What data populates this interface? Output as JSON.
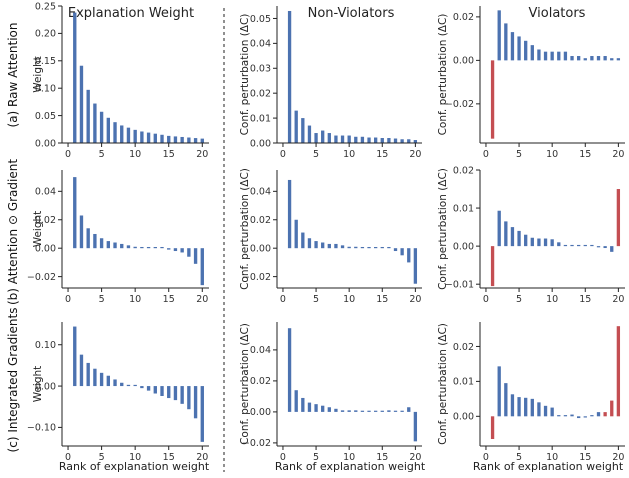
{
  "figure": {
    "column_titles": [
      "Explanation Weight",
      "Non-Violators",
      "Violators"
    ],
    "row_labels": [
      "(a) Raw Attention",
      "(b) Attention ⊙ Gradient",
      "(c) Integrated Gradients"
    ],
    "xlabel": "Rank of explanation weight",
    "colors": {
      "bar": "#4c72b0",
      "highlight": "#c44e52",
      "axis": "#222222"
    }
  },
  "chart_data": [
    {
      "type": "bar",
      "row": 0,
      "col": 0,
      "ylabel": "Weight",
      "x": [
        1,
        2,
        3,
        4,
        5,
        6,
        7,
        8,
        9,
        10,
        11,
        12,
        13,
        14,
        15,
        16,
        17,
        18,
        19,
        20
      ],
      "values": [
        0.238,
        0.141,
        0.097,
        0.072,
        0.057,
        0.046,
        0.038,
        0.032,
        0.028,
        0.024,
        0.021,
        0.019,
        0.017,
        0.015,
        0.013,
        0.012,
        0.011,
        0.01,
        0.009,
        0.008
      ],
      "ylim": [
        0,
        0.25
      ],
      "yticks": [
        "0.00",
        "0.05",
        "0.10",
        "0.15",
        "0.20",
        "0.25"
      ],
      "ytick_values": [
        0,
        0.05,
        0.1,
        0.15,
        0.2,
        0.25
      ],
      "xticks": [
        "0",
        "5",
        "10",
        "15",
        "20"
      ],
      "highlight": []
    },
    {
      "type": "bar",
      "row": 0,
      "col": 1,
      "ylabel": "Conf. perturbation (ΔC)",
      "x": [
        1,
        2,
        3,
        4,
        5,
        6,
        7,
        8,
        9,
        10,
        11,
        12,
        13,
        14,
        15,
        16,
        17,
        18,
        19,
        20
      ],
      "values": [
        0.053,
        0.013,
        0.01,
        0.007,
        0.004,
        0.005,
        0.004,
        0.003,
        0.003,
        0.003,
        0.0025,
        0.0025,
        0.0022,
        0.0022,
        0.002,
        0.002,
        0.0018,
        0.0015,
        0.0015,
        0.0012
      ],
      "ylim": [
        0,
        0.055
      ],
      "yticks": [
        "0.00",
        "0.01",
        "0.02",
        "0.03",
        "0.04",
        "0.05"
      ],
      "ytick_values": [
        0,
        0.01,
        0.02,
        0.03,
        0.04,
        0.05
      ],
      "xticks": [
        "0",
        "5",
        "10",
        "15",
        "20"
      ],
      "highlight": []
    },
    {
      "type": "bar",
      "row": 0,
      "col": 2,
      "ylabel": "Conf. perturbation (ΔC)",
      "x": [
        1,
        2,
        3,
        4,
        5,
        6,
        7,
        8,
        9,
        10,
        11,
        12,
        13,
        14,
        15,
        16,
        17,
        18,
        19,
        20
      ],
      "values": [
        -0.036,
        0.023,
        0.017,
        0.013,
        0.011,
        0.009,
        0.007,
        0.005,
        0.004,
        0.004,
        0.004,
        0.004,
        0.002,
        0.002,
        0.001,
        0.002,
        0.002,
        0.002,
        0.001,
        0.001
      ],
      "ylim": [
        -0.038,
        0.025
      ],
      "yticks": [
        "−0.02",
        "0.00",
        "0.02"
      ],
      "ytick_values": [
        -0.02,
        0,
        0.02
      ],
      "xticks": [
        "0",
        "5",
        "10",
        "15",
        "20"
      ],
      "highlight": [
        1
      ]
    },
    {
      "type": "bar",
      "row": 1,
      "col": 0,
      "ylabel": "Weight",
      "x": [
        1,
        2,
        3,
        4,
        5,
        6,
        7,
        8,
        9,
        10,
        11,
        12,
        13,
        14,
        15,
        16,
        17,
        18,
        19,
        20
      ],
      "values": [
        0.05,
        0.023,
        0.014,
        0.01,
        0.007,
        0.005,
        0.004,
        0.003,
        0.002,
        0.001,
        0.0005,
        0,
        0,
        0,
        -0.001,
        -0.002,
        -0.003,
        -0.006,
        -0.011,
        -0.026
      ],
      "ylim": [
        -0.028,
        0.055
      ],
      "yticks": [
        "−0.02",
        "0.00",
        "0.02",
        "0.04"
      ],
      "ytick_values": [
        -0.02,
        0,
        0.02,
        0.04
      ],
      "xticks": [
        "0",
        "5",
        "10",
        "15",
        "20"
      ],
      "highlight": []
    },
    {
      "type": "bar",
      "row": 1,
      "col": 1,
      "ylabel": "Conf. perturbation (ΔC)",
      "x": [
        1,
        2,
        3,
        4,
        5,
        6,
        7,
        8,
        9,
        10,
        11,
        12,
        13,
        14,
        15,
        16,
        17,
        18,
        19,
        20
      ],
      "values": [
        0.048,
        0.02,
        0.011,
        0.007,
        0.005,
        0.004,
        0.003,
        0.003,
        0.002,
        0.001,
        0.001,
        0.0005,
        0,
        0,
        0,
        0,
        -0.002,
        -0.005,
        -0.01,
        -0.025
      ],
      "ylim": [
        -0.028,
        0.055
      ],
      "yticks": [
        "−0.02",
        "0.00",
        "0.02",
        "0.04"
      ],
      "ytick_values": [
        -0.02,
        0,
        0.02,
        0.04
      ],
      "xticks": [
        "0",
        "5",
        "10",
        "15",
        "20"
      ],
      "highlight": []
    },
    {
      "type": "bar",
      "row": 1,
      "col": 2,
      "ylabel": "Conf. perturbation (ΔC)",
      "x": [
        1,
        2,
        3,
        4,
        5,
        6,
        7,
        8,
        9,
        10,
        11,
        12,
        13,
        14,
        15,
        16,
        17,
        18,
        19,
        20
      ],
      "values": [
        -0.0105,
        0.0093,
        0.0065,
        0.005,
        0.004,
        0.003,
        0.0022,
        0.002,
        0.002,
        0.0018,
        0.001,
        0.0002,
        0,
        0,
        0,
        0,
        -0.0003,
        -0.0005,
        -0.0015,
        0.015
      ],
      "ylim": [
        -0.011,
        0.02
      ],
      "yticks": [
        "−0.01",
        "0.00",
        "0.01",
        "0.02"
      ],
      "ytick_values": [
        -0.01,
        0,
        0.01,
        0.02
      ],
      "xticks": [
        "0",
        "5",
        "10",
        "15",
        "20"
      ],
      "highlight": [
        1,
        20
      ]
    },
    {
      "type": "bar",
      "row": 2,
      "col": 0,
      "ylabel": "Weight",
      "x": [
        1,
        2,
        3,
        4,
        5,
        6,
        7,
        8,
        9,
        10,
        11,
        12,
        13,
        14,
        15,
        16,
        17,
        18,
        19,
        20
      ],
      "values": [
        0.144,
        0.076,
        0.056,
        0.042,
        0.032,
        0.025,
        0.016,
        0.008,
        0.003,
        0,
        -0.005,
        -0.011,
        -0.018,
        -0.024,
        -0.029,
        -0.034,
        -0.043,
        -0.056,
        -0.078,
        -0.135
      ],
      "ylim": [
        -0.145,
        0.155
      ],
      "yticks": [
        "−0.10",
        "0.00",
        "0.10"
      ],
      "ytick_values": [
        -0.1,
        0,
        0.1
      ],
      "xticks": [
        "0",
        "5",
        "10",
        "15",
        "20"
      ],
      "highlight": []
    },
    {
      "type": "bar",
      "row": 2,
      "col": 1,
      "ylabel": "Conf. perturbation (ΔC)",
      "x": [
        1,
        2,
        3,
        4,
        5,
        6,
        7,
        8,
        9,
        10,
        11,
        12,
        13,
        14,
        15,
        16,
        17,
        18,
        19,
        20
      ],
      "values": [
        0.054,
        0.014,
        0.009,
        0.006,
        0.005,
        0.004,
        0.003,
        0.002,
        0.001,
        0.001,
        0.001,
        0,
        0,
        0,
        0,
        0.001,
        0,
        0,
        0.003,
        -0.019
      ],
      "ylim": [
        -0.022,
        0.058
      ],
      "yticks": [
        "−0.02",
        "0.00",
        "0.02",
        "0.04"
      ],
      "ytick_values": [
        -0.02,
        0,
        0.02,
        0.04
      ],
      "xticks": [
        "0",
        "5",
        "10",
        "15",
        "20"
      ],
      "highlight": []
    },
    {
      "type": "bar",
      "row": 2,
      "col": 2,
      "ylabel": "Conf. perturbation (ΔC)",
      "x": [
        1,
        2,
        3,
        4,
        5,
        6,
        7,
        8,
        9,
        10,
        11,
        12,
        13,
        14,
        15,
        16,
        17,
        18,
        19,
        20
      ],
      "values": [
        -0.0065,
        0.0143,
        0.0095,
        0.0063,
        0.0055,
        0.0053,
        0.005,
        0.004,
        0.003,
        0.0025,
        0,
        0,
        0.0005,
        -0.0005,
        -0.0003,
        0,
        0.0012,
        0.0012,
        0.0045,
        0.0258
      ],
      "ylim": [
        -0.0085,
        0.027
      ],
      "yticks": [
        "0.00",
        "0.01",
        "0.02"
      ],
      "ytick_values": [
        0,
        0.01,
        0.02
      ],
      "xticks": [
        "0",
        "5",
        "10",
        "15",
        "20"
      ],
      "highlight": [
        1,
        18,
        19,
        20
      ]
    }
  ]
}
